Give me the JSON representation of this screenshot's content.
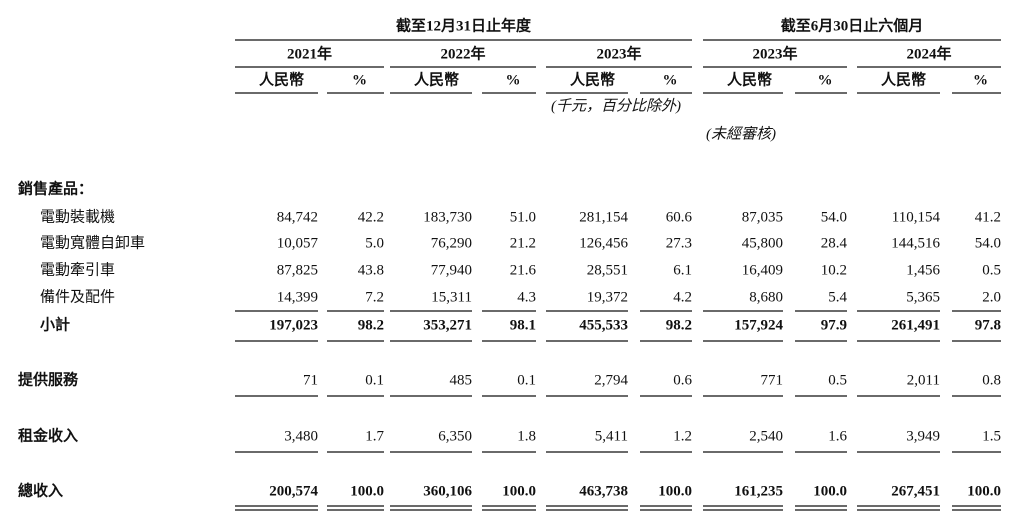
{
  "header": {
    "groups": [
      "截至12月31日止年度",
      "截至6月30日止六個月"
    ],
    "years": [
      "2021年",
      "2022年",
      "2023年",
      "2023年",
      "2024年"
    ],
    "currency": "人民幣",
    "percent": "%",
    "unit_note": "(千元，百分比除外)",
    "audit_note": "(未經審核)"
  },
  "table": {
    "rows": [
      {
        "label": "銷售產品：",
        "values": []
      },
      {
        "label": "電動裝載機",
        "values": [
          "84,742",
          "42.2",
          "183,730",
          "51.0",
          "281,154",
          "60.6",
          "87,035",
          "54.0",
          "110,154",
          "41.2"
        ]
      },
      {
        "label": "電動寬體自卸車",
        "values": [
          "10,057",
          "5.0",
          "76,290",
          "21.2",
          "126,456",
          "27.3",
          "45,800",
          "28.4",
          "144,516",
          "54.0"
        ]
      },
      {
        "label": "電動牽引車",
        "values": [
          "87,825",
          "43.8",
          "77,940",
          "21.6",
          "28,551",
          "6.1",
          "16,409",
          "10.2",
          "1,456",
          "0.5"
        ]
      },
      {
        "label": "備件及配件",
        "values": [
          "14,399",
          "7.2",
          "15,311",
          "4.3",
          "19,372",
          "4.2",
          "8,680",
          "5.4",
          "5,365",
          "2.0"
        ]
      },
      {
        "label": "小計",
        "values": [
          "197,023",
          "98.2",
          "353,271",
          "98.1",
          "455,533",
          "98.2",
          "157,924",
          "97.9",
          "261,491",
          "97.8"
        ]
      },
      {
        "label": "提供服務",
        "values": [
          "71",
          "0.1",
          "485",
          "0.1",
          "2,794",
          "0.6",
          "771",
          "0.5",
          "2,011",
          "0.8"
        ]
      },
      {
        "label": "租金收入",
        "values": [
          "3,480",
          "1.7",
          "6,350",
          "1.8",
          "5,411",
          "1.2",
          "2,540",
          "1.6",
          "3,949",
          "1.5"
        ]
      },
      {
        "label": "總收入",
        "values": [
          "200,574",
          "100.0",
          "360,106",
          "100.0",
          "463,738",
          "100.0",
          "161,235",
          "100.0",
          "267,451",
          "100.0"
        ]
      }
    ]
  }
}
